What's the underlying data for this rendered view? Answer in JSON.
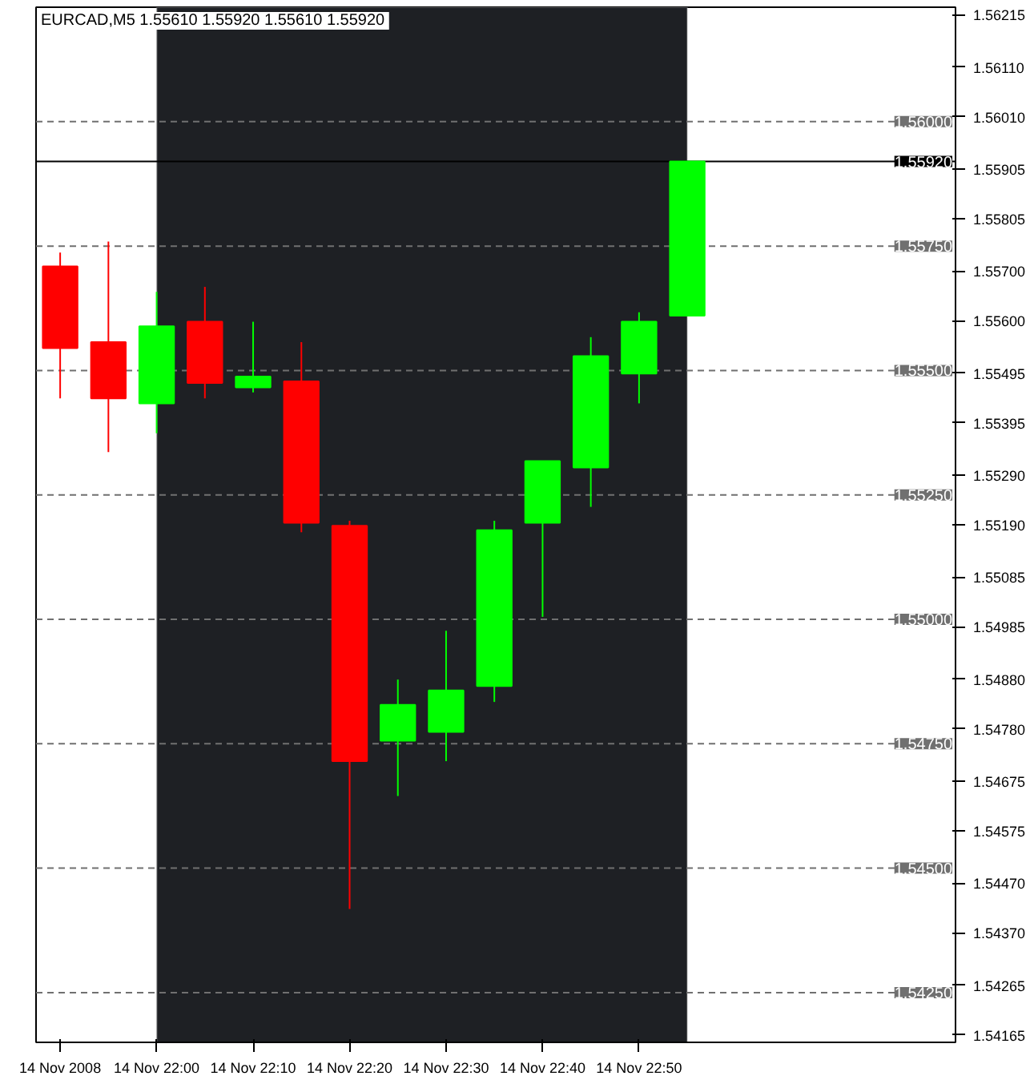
{
  "chart_data": {
    "type": "candlestick",
    "title": "EURCAD,M5  1.55610 1.55920 1.55610 1.55920",
    "x": [
      "2008-11-14T21:50",
      "2008-11-14T21:55",
      "2008-11-14T22:00",
      "2008-11-14T22:05",
      "2008-11-14T22:10",
      "2008-11-14T22:15",
      "2008-11-14T22:20",
      "2008-11-14T22:25",
      "2008-11-14T22:30",
      "2008-11-14T22:35",
      "2008-11-14T22:40",
      "2008-11-14T22:45",
      "2008-11-14T22:50",
      "2008-11-14T22:55"
    ],
    "ohlc": [
      [
        1.55709,
        1.55737,
        1.55444,
        1.55545
      ],
      [
        1.55557,
        1.55759,
        1.55336,
        1.55444
      ],
      [
        1.55434,
        1.55658,
        1.55374,
        1.55589
      ],
      [
        1.55598,
        1.55668,
        1.55444,
        1.55475
      ],
      [
        1.55466,
        1.55598,
        1.55456,
        1.55488
      ],
      [
        1.55478,
        1.55557,
        1.55175,
        1.55194
      ],
      [
        1.55188,
        1.55198,
        1.54418,
        1.54715
      ],
      [
        1.54756,
        1.54879,
        1.54645,
        1.54828
      ],
      [
        1.54774,
        1.54977,
        1.54715,
        1.54857
      ],
      [
        1.54866,
        1.55198,
        1.54834,
        1.55179
      ],
      [
        1.55194,
        1.55318,
        1.55005,
        1.55318
      ],
      [
        1.55305,
        1.55567,
        1.55226,
        1.55529
      ],
      [
        1.55494,
        1.55617,
        1.55434,
        1.55598
      ],
      [
        1.5561,
        1.5592,
        1.5561,
        1.5592
      ]
    ],
    "colors": [
      "#ff0000",
      "#ff0000",
      "#00ff00",
      "#ff0000",
      "#00ff00",
      "#ff0000",
      "#ff0000",
      "#00ff00",
      "#00ff00",
      "#00ff00",
      "#00ff00",
      "#00ff00",
      "#00ff00",
      "#00ff00"
    ],
    "xlim": [
      "2008-11-14T21:47:30",
      "2008-11-14T23:22:48"
    ],
    "xticks": [
      {
        "value": "2008-11-14T21:50",
        "label": "14 Nov 2008"
      },
      {
        "value": "2008-11-14T22:00",
        "label": "14 Nov 22:00"
      },
      {
        "value": "2008-11-14T22:10",
        "label": "14 Nov 22:10"
      },
      {
        "value": "2008-11-14T22:20",
        "label": "14 Nov 22:20"
      },
      {
        "value": "2008-11-14T22:30",
        "label": "14 Nov 22:30"
      },
      {
        "value": "2008-11-14T22:40",
        "label": "14 Nov 22:40"
      },
      {
        "value": "2008-11-14T22:50",
        "label": "14 Nov 22:50"
      }
    ],
    "ylim": [
      1.5415,
      1.5623
    ],
    "yticks": [
      {
        "value": 1.56215,
        "label": "1.56215"
      },
      {
        "value": 1.5611,
        "label": "1.56110"
      },
      {
        "value": 1.5601,
        "label": "1.56010"
      },
      {
        "value": 1.55905,
        "label": "1.55905"
      },
      {
        "value": 1.55805,
        "label": "1.55805"
      },
      {
        "value": 1.557,
        "label": "1.55700"
      },
      {
        "value": 1.556,
        "label": "1.55600"
      },
      {
        "value": 1.55495,
        "label": "1.55495"
      },
      {
        "value": 1.55395,
        "label": "1.55395"
      },
      {
        "value": 1.5529,
        "label": "1.55290"
      },
      {
        "value": 1.5519,
        "label": "1.55190"
      },
      {
        "value": 1.55085,
        "label": "1.55085"
      },
      {
        "value": 1.54985,
        "label": "1.54985"
      },
      {
        "value": 1.5488,
        "label": "1.54880"
      },
      {
        "value": 1.5478,
        "label": "1.54780"
      },
      {
        "value": 1.54675,
        "label": "1.54675"
      },
      {
        "value": 1.54575,
        "label": "1.54575"
      },
      {
        "value": 1.5447,
        "label": "1.54470"
      },
      {
        "value": 1.5437,
        "label": "1.54370"
      },
      {
        "value": 1.54265,
        "label": "1.54265"
      },
      {
        "value": 1.54165,
        "label": "1.54165"
      }
    ],
    "bands": [
      {
        "axis": "x",
        "from": "2008-11-14T22:00",
        "to": "2008-11-14T22:55",
        "color": "#1e2024"
      }
    ],
    "ref_lines": [
      {
        "axis": "y",
        "value": 1.56,
        "label": "1.56000",
        "color": "#707070",
        "line_style": "dashed"
      },
      {
        "axis": "y",
        "value": 1.5592,
        "label": "1.55920",
        "color": "#000000",
        "line_style": "solid"
      },
      {
        "axis": "y",
        "value": 1.5575,
        "label": "1.55750",
        "color": "#707070",
        "line_style": "dashed"
      },
      {
        "axis": "y",
        "value": 1.555,
        "label": "1.55500",
        "color": "#707070",
        "line_style": "dashed"
      },
      {
        "axis": "y",
        "value": 1.5525,
        "label": "1.55250",
        "color": "#707070",
        "line_style": "dashed"
      },
      {
        "axis": "y",
        "value": 1.55,
        "label": "1.55000",
        "color": "#707070",
        "line_style": "dashed"
      },
      {
        "axis": "y",
        "value": 1.5475,
        "label": "1.54750",
        "color": "#707070",
        "line_style": "dashed"
      },
      {
        "axis": "y",
        "value": 1.545,
        "label": "1.54500",
        "color": "#707070",
        "line_style": "dashed"
      },
      {
        "axis": "y",
        "value": 1.5425,
        "label": "1.54250",
        "color": "#707070",
        "line_style": "dashed"
      }
    ],
    "grid": false
  }
}
